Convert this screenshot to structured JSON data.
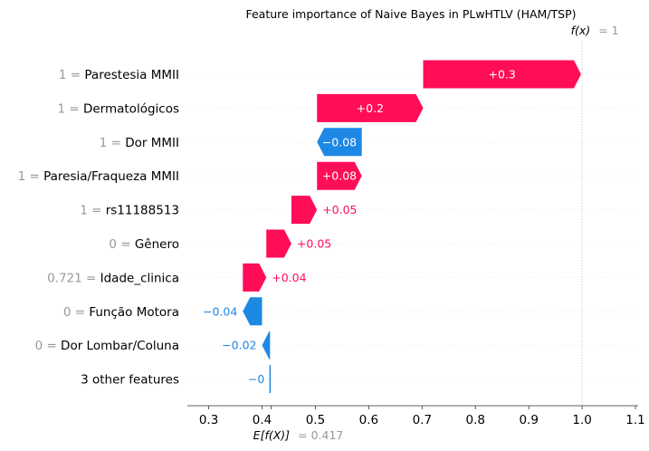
{
  "chart_data": {
    "type": "waterfall",
    "title": "Feature importance of Naive Bayes in PLwHTLV (HAM/TSP)",
    "base_value": 0.417,
    "base_label_expr": "E[f(X)]",
    "base_label_value": "= 0.417",
    "output_value": 1,
    "output_label_expr": "f(x)",
    "output_label_value": "= 1",
    "xlim": [
      0.26,
      1.105
    ],
    "xticks": [
      0.3,
      0.4,
      0.5,
      0.6,
      0.7,
      0.8,
      0.9,
      1.0,
      1.1
    ],
    "xtick_labels": [
      "0.3",
      "0.4",
      "0.5",
      "0.6",
      "0.7",
      "0.8",
      "0.9",
      "1.0",
      "1.1"
    ],
    "features": [
      {
        "value": "1",
        "name": "Parestesia MMII",
        "contribution": 0.296,
        "label": "+0.3"
      },
      {
        "value": "1",
        "name": "Dermatológicos",
        "contribution": 0.199,
        "label": "+0.2"
      },
      {
        "value": "1",
        "name": "Dor MMII",
        "contribution": -0.084,
        "label": "−0.08"
      },
      {
        "value": "1",
        "name": "Paresia/Fraqueza MMII",
        "contribution": 0.084,
        "label": "+0.08"
      },
      {
        "value": "1",
        "name": "rs11188513",
        "contribution": 0.048,
        "label": "+0.05"
      },
      {
        "value": "0",
        "name": "Gênero",
        "contribution": 0.047,
        "label": "+0.05"
      },
      {
        "value": "0.721",
        "name": "Idade_clinica",
        "contribution": 0.044,
        "label": "+0.04"
      },
      {
        "value": "0",
        "name": "Função Motora",
        "contribution": -0.036,
        "label": "−0.04"
      },
      {
        "value": "0",
        "name": "Dor Lombar/Coluna",
        "contribution": -0.015,
        "label": "−0.02"
      },
      {
        "value": "",
        "name": "3 other features",
        "contribution": -0.002,
        "label": "−0"
      }
    ],
    "colors": {
      "positive": "#ff0d57",
      "negative": "#1e88e5",
      "muted": "#999999"
    }
  }
}
